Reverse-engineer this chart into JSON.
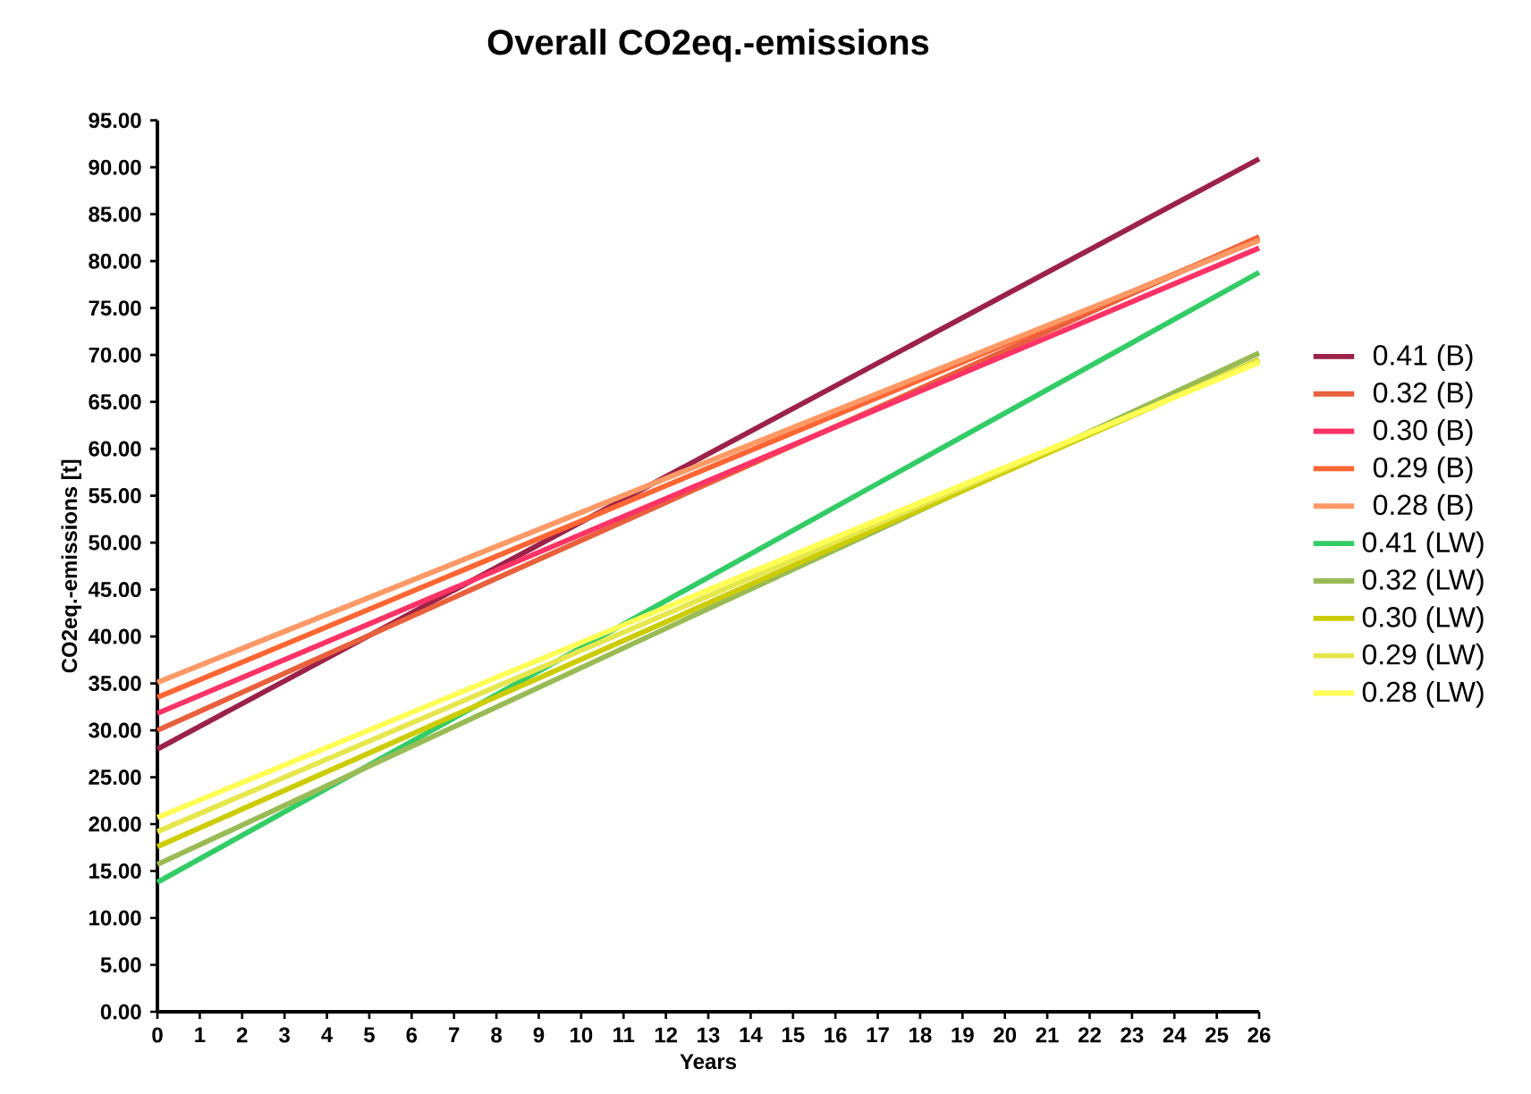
{
  "chart_data": {
    "type": "line",
    "title": "Overall CO2eq.-emissions",
    "xlabel": "Years",
    "ylabel": "CO2eq.-emissions [t]",
    "x": [
      0,
      26
    ],
    "series": [
      {
        "name": "0.41 (B)",
        "color": "#9b2248",
        "values": [
          28.0,
          90.9
        ]
      },
      {
        "name": "0.32 (B)",
        "color": "#e8603c",
        "values": [
          30.0,
          82.6
        ]
      },
      {
        "name": "0.30 (B)",
        "color": "#ff3366",
        "values": [
          31.8,
          81.4
        ]
      },
      {
        "name": "0.29 (B)",
        "color": "#ff6633",
        "values": [
          33.5,
          82.4
        ]
      },
      {
        "name": "0.28 (B)",
        "color": "#ff9966",
        "values": [
          35.1,
          82.2
        ]
      },
      {
        "name": "0.41 (LW)",
        "color": "#33cc66",
        "values": [
          13.8,
          78.8
        ]
      },
      {
        "name": "0.32 (LW)",
        "color": "#99bb55",
        "values": [
          15.7,
          70.2
        ]
      },
      {
        "name": "0.30 (LW)",
        "color": "#cccc00",
        "values": [
          17.6,
          69.5
        ]
      },
      {
        "name": "0.29 (LW)",
        "color": "#e6e64d",
        "values": [
          19.2,
          69.4
        ]
      },
      {
        "name": "0.28 (LW)",
        "color": "#ffff55",
        "values": [
          20.7,
          69.2
        ]
      }
    ],
    "xlim": [
      0,
      26
    ],
    "ylim": [
      0,
      95
    ],
    "xticks": [
      0,
      1,
      2,
      3,
      4,
      5,
      6,
      7,
      8,
      9,
      10,
      11,
      12,
      13,
      14,
      15,
      16,
      17,
      18,
      19,
      20,
      21,
      22,
      23,
      24,
      25,
      26
    ],
    "yticks": [
      {
        "value": 0,
        "label": "0.00"
      },
      {
        "value": 5,
        "label": "5.00"
      },
      {
        "value": 10,
        "label": "10.00"
      },
      {
        "value": 15,
        "label": "15.00"
      },
      {
        "value": 20,
        "label": "20.00"
      },
      {
        "value": 25,
        "label": "25.00"
      },
      {
        "value": 30,
        "label": "30.00"
      },
      {
        "value": 35,
        "label": "35.00"
      },
      {
        "value": 40,
        "label": "40.00"
      },
      {
        "value": 45,
        "label": "45.00"
      },
      {
        "value": 50,
        "label": "50.00"
      },
      {
        "value": 55,
        "label": "55.00"
      },
      {
        "value": 60,
        "label": "60.00"
      },
      {
        "value": 65,
        "label": "65.00"
      },
      {
        "value": 70,
        "label": "70.00"
      },
      {
        "value": 75,
        "label": "75.00"
      },
      {
        "value": 80,
        "label": "80.00"
      },
      {
        "value": 85,
        "label": "85.00"
      },
      {
        "value": 90,
        "label": "90.00"
      },
      {
        "value": 95,
        "label": "95.00"
      }
    ],
    "grid": false,
    "legend": "right",
    "marker": "none",
    "line_style": "solid"
  }
}
